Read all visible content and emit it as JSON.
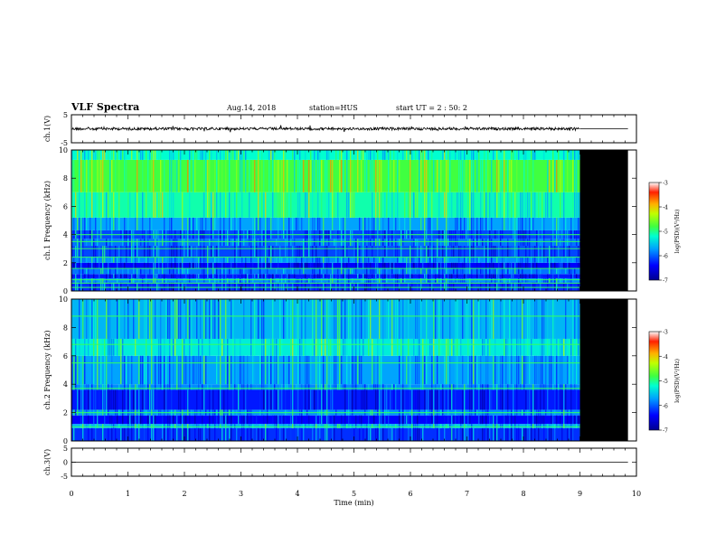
{
  "header": {
    "title": "VLF Spectra",
    "date": "Aug.14, 2018",
    "station": "station=HUS",
    "start": "start UT = 2 : 50: 2"
  },
  "chart_data": [
    {
      "type": "line",
      "ylabel": "ch.1(V)",
      "xlim": [
        0,
        10
      ],
      "ylim": [
        -5,
        5
      ],
      "yticks": [
        "5",
        "-5"
      ],
      "series": [
        {
          "x": [
            0,
            9
          ],
          "y_center": 0,
          "y_noise_amplitude": 1.2
        },
        {
          "x": [
            9,
            9.85
          ],
          "y_center": 0,
          "y_noise_amplitude": 0
        }
      ]
    },
    {
      "type": "heatmap",
      "ylabel": "ch.1 Frequency (kHz)",
      "xlim": [
        0,
        10
      ],
      "ylim": [
        0,
        10
      ],
      "yticks": [
        "0",
        "2",
        "4",
        "6",
        "8",
        "10"
      ],
      "data_x_range": [
        0,
        9
      ],
      "no_data_x_range": [
        9,
        9.85
      ],
      "colorbar": {
        "label": "log(PSD)(V²/Hz)",
        "range": [
          -7,
          -3
        ],
        "ticks": [
          "-3",
          "-4",
          "-5",
          "-6",
          "-7"
        ]
      },
      "bands": [
        {
          "f": [
            0,
            0.6
          ],
          "level": -6.2
        },
        {
          "f": [
            0.6,
            0.9
          ],
          "level": -5.8
        },
        {
          "f": [
            0.9,
            1.2
          ],
          "level": -6.3
        },
        {
          "f": [
            1.2,
            1.6
          ],
          "level": -5.9
        },
        {
          "f": [
            1.6,
            2.0
          ],
          "level": -6.4
        },
        {
          "f": [
            2.0,
            2.4
          ],
          "level": -5.8
        },
        {
          "f": [
            2.4,
            3.2
          ],
          "level": -6.1
        },
        {
          "f": [
            3.2,
            3.7
          ],
          "level": -5.9
        },
        {
          "f": [
            3.7,
            4.3
          ],
          "level": -6.1
        },
        {
          "f": [
            4.3,
            5.2
          ],
          "level": -5.7
        },
        {
          "f": [
            5.2,
            7.0
          ],
          "level": -5.1
        },
        {
          "f": [
            7.0,
            9.3
          ],
          "level": -4.8
        },
        {
          "f": [
            9.3,
            10
          ],
          "level": -5.2
        }
      ],
      "lines_khz": [
        0.25,
        0.55,
        0.8,
        1.6,
        2.4,
        3.0,
        3.5,
        4.0
      ]
    },
    {
      "type": "heatmap",
      "ylabel": "ch.2 Frequency (kHz)",
      "xlim": [
        0,
        10
      ],
      "ylim": [
        0,
        10
      ],
      "yticks": [
        "0",
        "2",
        "4",
        "6",
        "8",
        "10"
      ],
      "data_x_range": [
        0,
        9
      ],
      "no_data_x_range": [
        9,
        9.85
      ],
      "colorbar": {
        "label": "log(PSD)(V²/Hz)",
        "range": [
          -7,
          -3
        ],
        "ticks": [
          "-3",
          "-4",
          "-5",
          "-6",
          "-7"
        ]
      },
      "bands": [
        {
          "f": [
            0,
            0.9
          ],
          "level": -6.2
        },
        {
          "f": [
            0.9,
            1.2
          ],
          "level": -5.6
        },
        {
          "f": [
            1.2,
            1.8
          ],
          "level": -6.4
        },
        {
          "f": [
            1.8,
            2.2
          ],
          "level": -5.8
        },
        {
          "f": [
            2.2,
            3.6
          ],
          "level": -6.3
        },
        {
          "f": [
            3.6,
            4.0
          ],
          "level": -5.8
        },
        {
          "f": [
            4.0,
            6.0
          ],
          "level": -5.7
        },
        {
          "f": [
            6.0,
            7.2
          ],
          "level": -5.3
        },
        {
          "f": [
            7.2,
            10
          ],
          "level": -5.6
        }
      ],
      "lines_khz": [
        1.0,
        2.0,
        3.7,
        5.5,
        6.8,
        8.8
      ]
    },
    {
      "type": "line",
      "ylabel": "ch.3(V)",
      "xlabel": "Time (min)",
      "xlim": [
        0,
        10
      ],
      "ylim": [
        -5,
        5
      ],
      "yticks": [
        "5",
        "0",
        "-5"
      ],
      "xticks": [
        "0",
        "1",
        "2",
        "3",
        "4",
        "5",
        "6",
        "7",
        "8",
        "9",
        "10"
      ],
      "series": [
        {
          "x": [
            0,
            9.85
          ],
          "y_center": 0,
          "y_noise_amplitude": 0
        }
      ]
    }
  ]
}
